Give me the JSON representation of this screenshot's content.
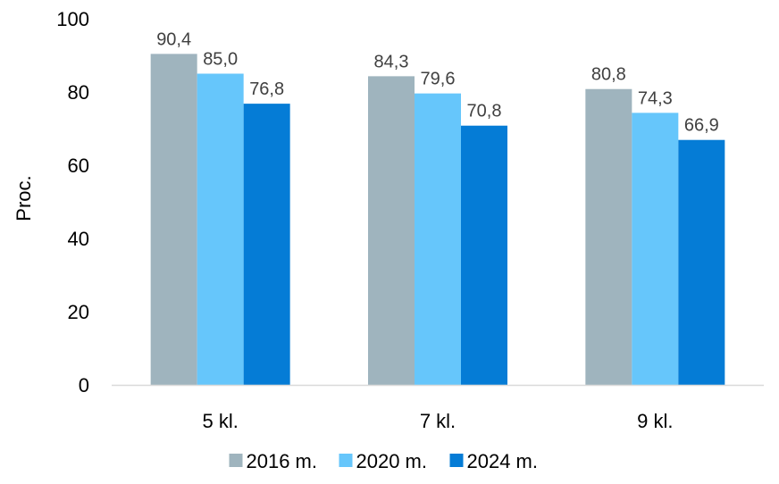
{
  "chart_data": {
    "type": "bar",
    "title": "",
    "xlabel": "",
    "ylabel": "Proc.",
    "categories": [
      "5 kl.",
      "7 kl.",
      "9 kl."
    ],
    "series": [
      {
        "name": "2016 m.",
        "color": "#9FB4BE",
        "values": [
          90.4,
          84.3,
          80.8
        ],
        "labels": [
          "90,4",
          "84,3",
          "80,8"
        ]
      },
      {
        "name": "2020 m.",
        "color": "#66C6FB",
        "values": [
          85.0,
          79.6,
          74.3
        ],
        "labels": [
          "85,0",
          "79,6",
          "74,3"
        ]
      },
      {
        "name": "2024 m.",
        "color": "#057CD6",
        "values": [
          76.8,
          70.8,
          66.9
        ],
        "labels": [
          "76,8",
          "70,8",
          "66,9"
        ]
      }
    ],
    "ylim": [
      0,
      100
    ],
    "yticks": [
      0,
      20,
      40,
      60,
      80,
      100
    ],
    "grid": false,
    "legend_position": "bottom"
  }
}
